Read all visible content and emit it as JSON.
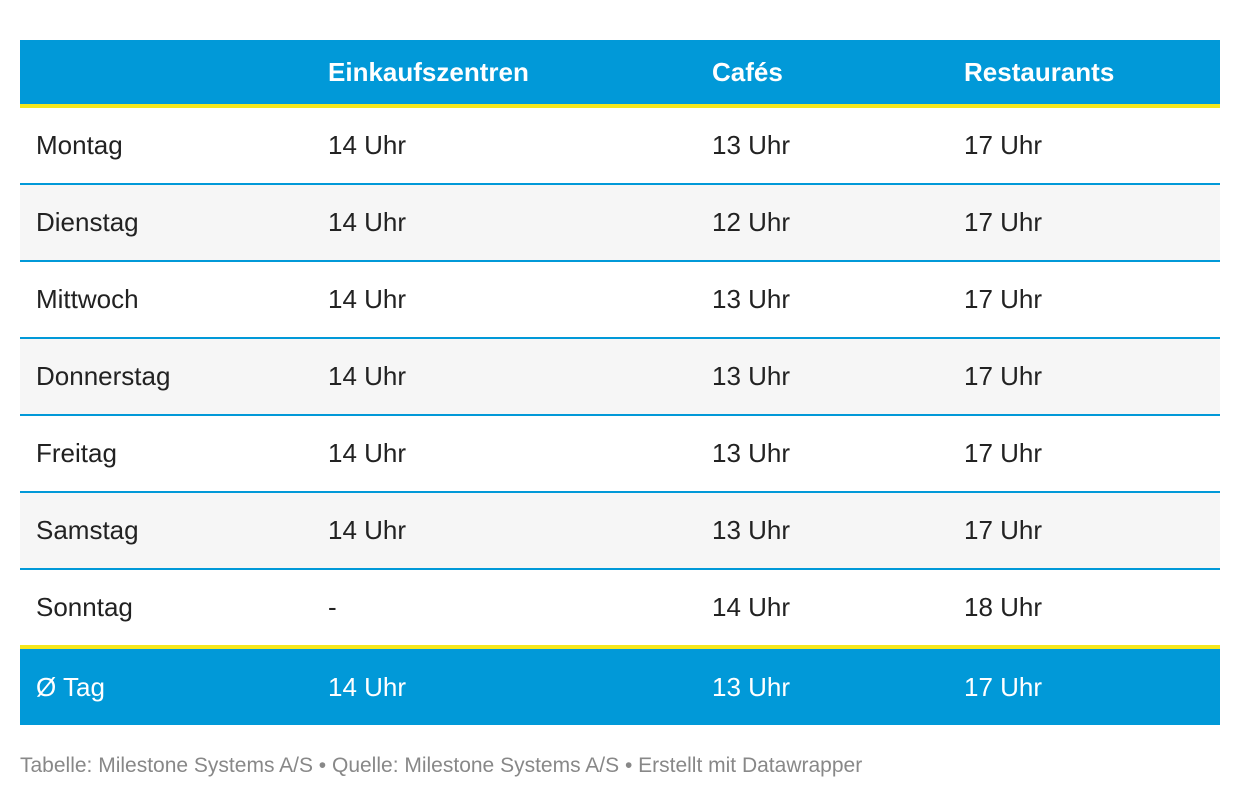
{
  "table": {
    "header": [
      "",
      "Einkaufszentren",
      "Cafés",
      "Restaurants"
    ],
    "rows": [
      [
        "Montag",
        "14 Uhr",
        "13 Uhr",
        "17 Uhr"
      ],
      [
        "Dienstag",
        "14 Uhr",
        "12 Uhr",
        "17 Uhr"
      ],
      [
        "Mittwoch",
        "14 Uhr",
        "13 Uhr",
        "17 Uhr"
      ],
      [
        "Donnerstag",
        "14 Uhr",
        "13 Uhr",
        "17 Uhr"
      ],
      [
        "Freitag",
        "14 Uhr",
        "13 Uhr",
        "17 Uhr"
      ],
      [
        "Samstag",
        "14 Uhr",
        "13 Uhr",
        "17 Uhr"
      ],
      [
        "Sonntag",
        "-",
        "14 Uhr",
        "18 Uhr"
      ]
    ],
    "footer_row": [
      "Ø Tag",
      "14 Uhr",
      "13 Uhr",
      "17 Uhr"
    ]
  },
  "footer": "Tabelle: Milestone Systems A/S • Quelle: Milestone Systems A/S • Erstellt mit Datawrapper"
}
